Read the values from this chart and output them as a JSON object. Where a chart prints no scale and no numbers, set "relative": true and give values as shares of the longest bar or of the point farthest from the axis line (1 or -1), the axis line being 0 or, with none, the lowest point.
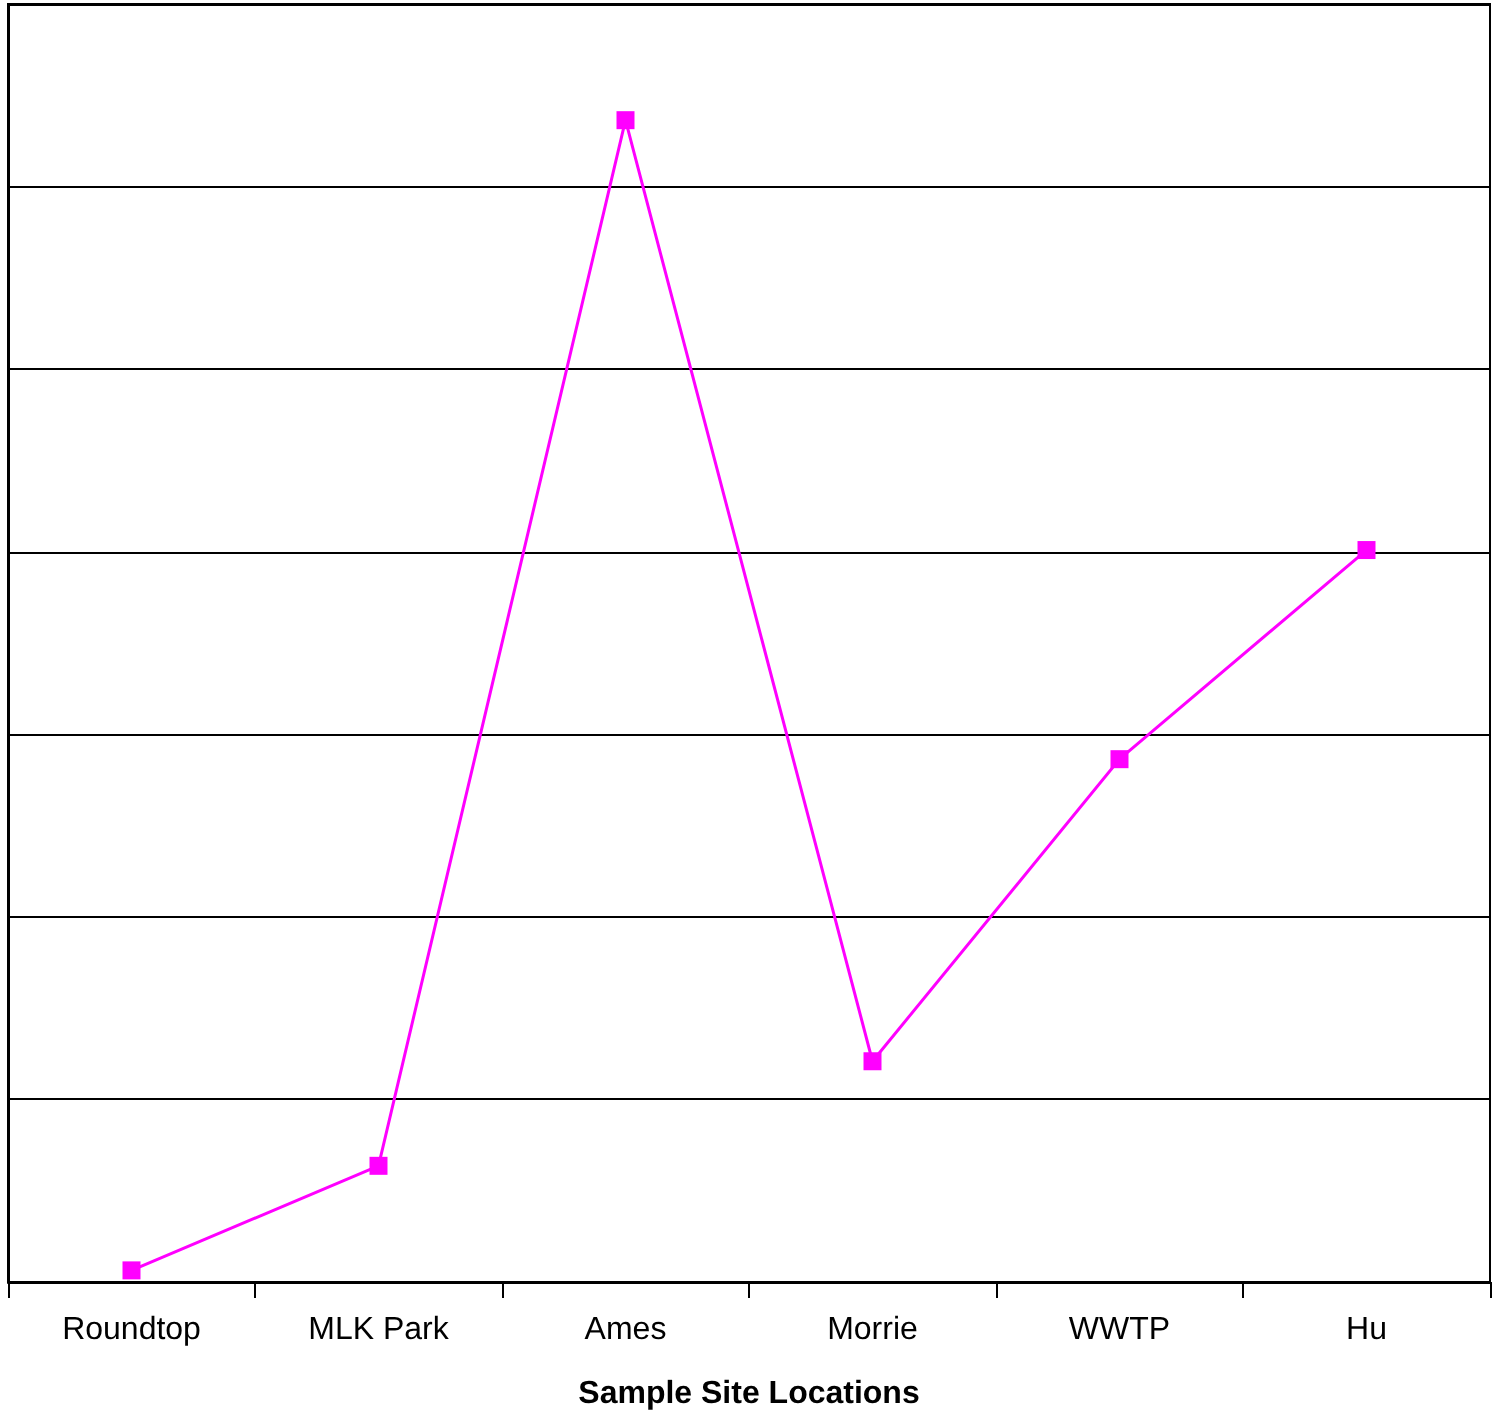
{
  "chart_data": {
    "type": "line",
    "xlabel": "Sample Site Locations",
    "relative": true,
    "categories": [
      "Roundtop",
      "MLK Park",
      "Ames",
      "Morrie",
      "WWTP",
      "Hu"
    ],
    "series": [
      {
        "color": "#ff00ff",
        "values": [
          0.01,
          0.1,
          1,
          0.19,
          0.45,
          0.63
        ]
      }
    ],
    "marker": "square",
    "line_style": "solid",
    "grid": "y"
  }
}
